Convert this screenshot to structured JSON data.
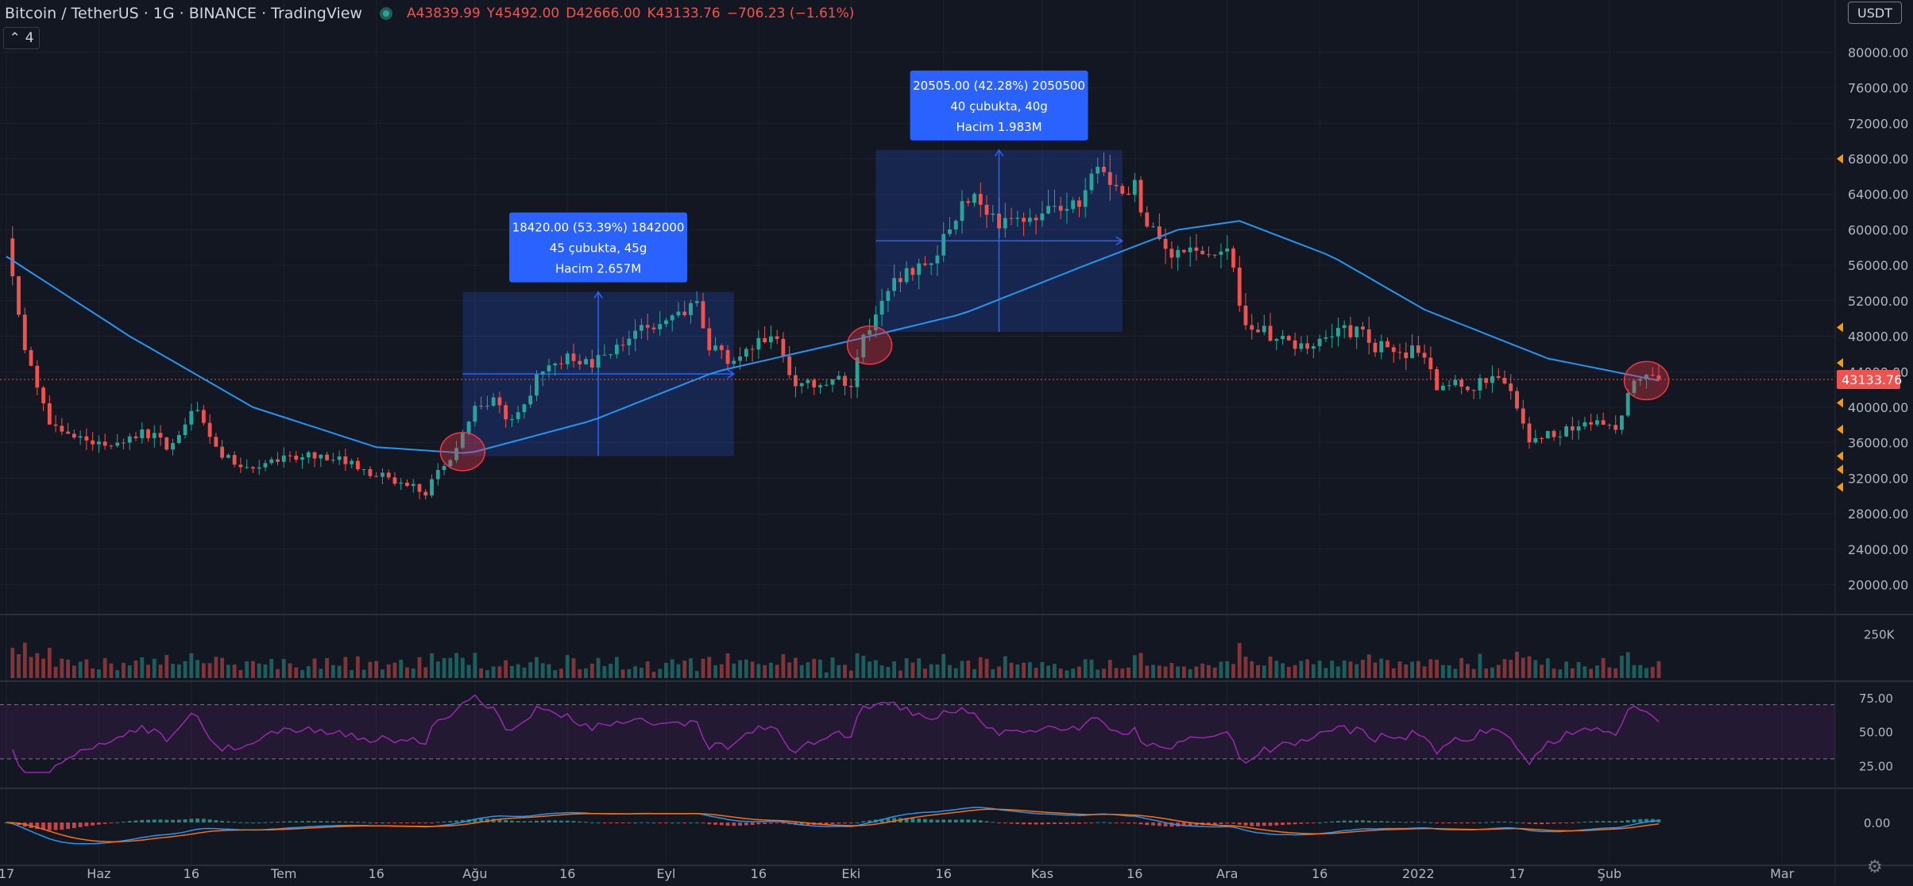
{
  "header": {
    "symbol": "Bitcoin / TetherUS · 1G · BINANCE · TradingView",
    "open_label": "A",
    "open": "43839.99",
    "high_label": "Y",
    "high": "45492.00",
    "low_label": "D",
    "low": "42666.00",
    "close_label": "K",
    "close": "43133.76",
    "change": "−706.23 (−1.61%)"
  },
  "indicators_toggle": {
    "count": "4"
  },
  "currency_button": "USDT",
  "colors": {
    "background": "#131722",
    "up": "#26a69a",
    "down": "#ef5350",
    "ma": "#2196f3",
    "rsi": "#9c27b0",
    "measure_box": "#2962ff",
    "macd": "#2196f3",
    "signal": "#ff6d00",
    "highlight": "#f23645"
  },
  "icons": {
    "settings": "gear-icon",
    "collapse": "chevron-up-icon"
  },
  "chart_data": {
    "type": "candlestick",
    "symbol": "BTCUSDT",
    "interval": "1G",
    "price_axis": {
      "ticks": [
        "80000.00",
        "76000.00",
        "72000.00",
        "68000.00",
        "64000.00",
        "60000.00",
        "56000.00",
        "52000.00",
        "48000.00",
        "44000.00",
        "40000.00",
        "36000.00",
        "32000.00",
        "28000.00",
        "24000.00",
        "20000.00"
      ],
      "ylim": [
        17000,
        82500
      ],
      "last_price": "43133.76",
      "last_price_value": 43133.76
    },
    "time_axis": {
      "labels": [
        {
          "label": "17",
          "day": 0
        },
        {
          "label": "Haz",
          "day": 15
        },
        {
          "label": "16",
          "day": 30
        },
        {
          "label": "Tem",
          "day": 45
        },
        {
          "label": "16",
          "day": 60
        },
        {
          "label": "Ağu",
          "day": 76
        },
        {
          "label": "16",
          "day": 91
        },
        {
          "label": "Eyl",
          "day": 107
        },
        {
          "label": "16",
          "day": 122
        },
        {
          "label": "Eki",
          "day": 137
        },
        {
          "label": "16",
          "day": 152
        },
        {
          "label": "Kas",
          "day": 168
        },
        {
          "label": "16",
          "day": 183
        },
        {
          "label": "Ara",
          "day": 198
        },
        {
          "label": "16",
          "day": 213
        },
        {
          "label": "2022",
          "day": 229
        },
        {
          "label": "17",
          "day": 245
        },
        {
          "label": "Şub",
          "day": 260
        },
        {
          "label": "Mar",
          "day": 288
        }
      ],
      "first_day": "17 May",
      "last_bar_day": 268
    },
    "key_points": [
      {
        "day": 0,
        "price": 58500
      },
      {
        "day": 3,
        "price": 47000
      },
      {
        "day": 7,
        "price": 38000
      },
      {
        "day": 12,
        "price": 36500
      },
      {
        "day": 17,
        "price": 35500
      },
      {
        "day": 22,
        "price": 37500
      },
      {
        "day": 26,
        "price": 35500
      },
      {
        "day": 31,
        "price": 39800
      },
      {
        "day": 35,
        "price": 34500
      },
      {
        "day": 40,
        "price": 33000
      },
      {
        "day": 45,
        "price": 34000
      },
      {
        "day": 50,
        "price": 34500
      },
      {
        "day": 55,
        "price": 33800
      },
      {
        "day": 60,
        "price": 32500
      },
      {
        "day": 65,
        "price": 31300
      },
      {
        "day": 68,
        "price": 30200
      },
      {
        "day": 70,
        "price": 32500
      },
      {
        "day": 73,
        "price": 35000
      },
      {
        "day": 76,
        "price": 39500
      },
      {
        "day": 79,
        "price": 40500
      },
      {
        "day": 82,
        "price": 38500
      },
      {
        "day": 85,
        "price": 42000
      },
      {
        "day": 88,
        "price": 45000
      },
      {
        "day": 92,
        "price": 45800
      },
      {
        "day": 95,
        "price": 44500
      },
      {
        "day": 99,
        "price": 47500
      },
      {
        "day": 103,
        "price": 48500
      },
      {
        "day": 107,
        "price": 49500
      },
      {
        "day": 110,
        "price": 51000
      },
      {
        "day": 112,
        "price": 52500
      },
      {
        "day": 114,
        "price": 46500
      },
      {
        "day": 117,
        "price": 45500
      },
      {
        "day": 121,
        "price": 47000
      },
      {
        "day": 125,
        "price": 47500
      },
      {
        "day": 128,
        "price": 42500
      },
      {
        "day": 131,
        "price": 42500
      },
      {
        "day": 134,
        "price": 43500
      },
      {
        "day": 137,
        "price": 42000
      },
      {
        "day": 139,
        "price": 48000
      },
      {
        "day": 142,
        "price": 51500
      },
      {
        "day": 145,
        "price": 55000
      },
      {
        "day": 148,
        "price": 55500
      },
      {
        "day": 151,
        "price": 57000
      },
      {
        "day": 154,
        "price": 61800
      },
      {
        "day": 157,
        "price": 65000
      },
      {
        "day": 160,
        "price": 61000
      },
      {
        "day": 163,
        "price": 60500
      },
      {
        "day": 166,
        "price": 61500
      },
      {
        "day": 169,
        "price": 62000
      },
      {
        "day": 172,
        "price": 61500
      },
      {
        "day": 175,
        "price": 64000
      },
      {
        "day": 177,
        "price": 66500
      },
      {
        "day": 180,
        "price": 64500
      },
      {
        "day": 183,
        "price": 64800
      },
      {
        "day": 186,
        "price": 59500
      },
      {
        "day": 189,
        "price": 57500
      },
      {
        "day": 192,
        "price": 58500
      },
      {
        "day": 195,
        "price": 57000
      },
      {
        "day": 198,
        "price": 57500
      },
      {
        "day": 201,
        "price": 49500
      },
      {
        "day": 204,
        "price": 48500
      },
      {
        "day": 207,
        "price": 47500
      },
      {
        "day": 210,
        "price": 46500
      },
      {
        "day": 213,
        "price": 47500
      },
      {
        "day": 216,
        "price": 49000
      },
      {
        "day": 219,
        "price": 48500
      },
      {
        "day": 222,
        "price": 47000
      },
      {
        "day": 225,
        "price": 46500
      },
      {
        "day": 229,
        "price": 46200
      },
      {
        "day": 232,
        "price": 42500
      },
      {
        "day": 235,
        "price": 42800
      },
      {
        "day": 238,
        "price": 42500
      },
      {
        "day": 241,
        "price": 43000
      },
      {
        "day": 244,
        "price": 42500
      },
      {
        "day": 247,
        "price": 36000
      },
      {
        "day": 250,
        "price": 36700
      },
      {
        "day": 253,
        "price": 37500
      },
      {
        "day": 256,
        "price": 37800
      },
      {
        "day": 259,
        "price": 38500
      },
      {
        "day": 261,
        "price": 37000
      },
      {
        "day": 263,
        "price": 41500
      },
      {
        "day": 266,
        "price": 44000
      },
      {
        "day": 268,
        "price": 43133.76
      }
    ],
    "moving_average": {
      "color": "#2196f3",
      "points": [
        {
          "day": 0,
          "price": 57000
        },
        {
          "day": 20,
          "price": 48000
        },
        {
          "day": 40,
          "price": 40000
        },
        {
          "day": 60,
          "price": 35500
        },
        {
          "day": 75,
          "price": 34800
        },
        {
          "day": 95,
          "price": 38500
        },
        {
          "day": 115,
          "price": 44000
        },
        {
          "day": 137,
          "price": 47500
        },
        {
          "day": 155,
          "price": 50500
        },
        {
          "day": 175,
          "price": 56000
        },
        {
          "day": 190,
          "price": 60000
        },
        {
          "day": 200,
          "price": 61000
        },
        {
          "day": 215,
          "price": 57000
        },
        {
          "day": 230,
          "price": 51000
        },
        {
          "day": 250,
          "price": 45500
        },
        {
          "day": 268,
          "price": 43000
        }
      ]
    },
    "measurements": [
      {
        "start_day": 74,
        "end_day": 118,
        "low": 34500,
        "high": 53000,
        "label_lines": [
          "18420.00 (53.39%) 1842000",
          "45 çubukta, 45g",
          "Hacim 2.657M"
        ]
      },
      {
        "start_day": 141,
        "end_day": 181,
        "low": 48500,
        "high": 69000,
        "label_lines": [
          "20505.00 (42.28%) 2050500",
          "40 çubukta, 40g",
          "Hacim 1.983M"
        ]
      }
    ],
    "highlights": [
      {
        "day": 74,
        "price": 35000
      },
      {
        "day": 140,
        "price": 47000
      },
      {
        "day": 266,
        "price": 43000
      }
    ],
    "volume": {
      "tick": "250K",
      "ylim": [
        0,
        350000
      ]
    },
    "rsi": {
      "ticks": [
        "75.00",
        "50.00",
        "25.00"
      ],
      "upper_band": 70,
      "lower_band": 30,
      "ylim": [
        10,
        85
      ]
    },
    "macd": {
      "ticks": [
        "0.00"
      ]
    }
  }
}
